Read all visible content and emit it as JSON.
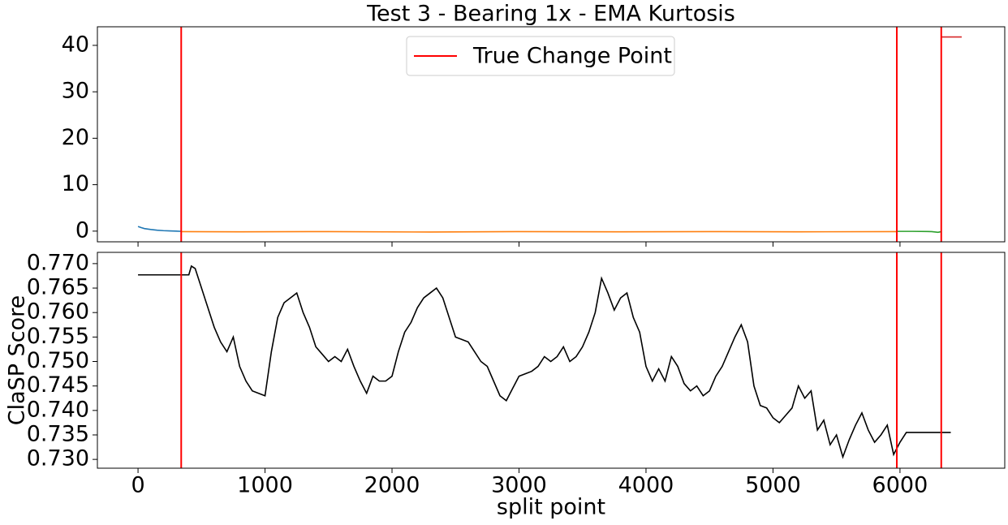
{
  "chart_data": [
    {
      "type": "line",
      "title": "Test 3 - Bearing 1x - EMA Kurtosis",
      "xlim": [
        -320,
        6825
      ],
      "ylim": [
        -2.3,
        44
      ],
      "yticks": [
        0,
        10,
        20,
        30,
        40
      ],
      "series": [
        {
          "color": "#1f77b4",
          "x": [
            0,
            25,
            50,
            100,
            150,
            200,
            250,
            300,
            340
          ],
          "values": [
            1.0,
            0.75,
            0.55,
            0.35,
            0.2,
            0.1,
            0.05,
            0.0,
            -0.05
          ]
        },
        {
          "color": "#ff7f0e",
          "x": [
            340,
            800,
            1500,
            2300,
            3000,
            3800,
            4500,
            5200,
            5975
          ],
          "values": [
            -0.1,
            -0.15,
            -0.1,
            -0.2,
            -0.1,
            -0.15,
            -0.1,
            -0.15,
            -0.1
          ]
        },
        {
          "color": "#2ca02c",
          "x": [
            5975,
            6100,
            6250,
            6300,
            6325
          ],
          "values": [
            -0.05,
            -0.05,
            -0.1,
            -0.25,
            -0.1
          ]
        },
        {
          "color": "#d62728",
          "x": [
            6325,
            6486
          ],
          "values": [
            41.8,
            41.8
          ]
        }
      ],
      "vlines": {
        "name": "True Change Point",
        "color": "#ff0000",
        "x": [
          340,
          5975,
          6325
        ]
      },
      "legend": "upper center"
    },
    {
      "type": "line",
      "xlabel": "split point",
      "ylabel": "ClaSP Score",
      "xlim": [
        -320,
        6825
      ],
      "xticks": [
        0,
        1000,
        2000,
        3000,
        4000,
        5000,
        6000
      ],
      "ylim": [
        0.7282,
        0.7723
      ],
      "yticks": [
        {
          "value": 0.73,
          "label": "0.730"
        },
        0.735,
        {
          "value": 0.74,
          "label": "0.740"
        },
        0.745,
        {
          "value": 0.75,
          "label": "0.750"
        },
        0.755,
        {
          "value": 0.76,
          "label": "0.760"
        },
        0.765,
        {
          "value": 0.77,
          "label": "0.770"
        }
      ],
      "series": [
        {
          "color": "#000000",
          "x": [
            0,
            340,
            400,
            420,
            450,
            500,
            550,
            600,
            650,
            700,
            750,
            800,
            850,
            900,
            950,
            1000,
            1050,
            1100,
            1150,
            1200,
            1250,
            1300,
            1350,
            1400,
            1450,
            1500,
            1550,
            1600,
            1650,
            1700,
            1750,
            1800,
            1850,
            1900,
            1950,
            2000,
            2050,
            2100,
            2150,
            2200,
            2250,
            2300,
            2350,
            2400,
            2450,
            2500,
            2550,
            2600,
            2650,
            2700,
            2750,
            2800,
            2850,
            2900,
            2950,
            3000,
            3050,
            3100,
            3150,
            3200,
            3250,
            3300,
            3350,
            3400,
            3450,
            3500,
            3550,
            3600,
            3650,
            3700,
            3750,
            3800,
            3850,
            3900,
            3950,
            4000,
            4050,
            4100,
            4150,
            4200,
            4250,
            4300,
            4350,
            4400,
            4450,
            4500,
            4550,
            4600,
            4650,
            4700,
            4750,
            4800,
            4850,
            4900,
            4950,
            5000,
            5050,
            5100,
            5150,
            5200,
            5250,
            5300,
            5350,
            5400,
            5450,
            5500,
            5550,
            5600,
            5650,
            5700,
            5750,
            5800,
            5850,
            5900,
            5950,
            6000,
            6050,
            6100,
            6400
          ],
          "values": [
            0.7677,
            0.7677,
            0.7677,
            0.7695,
            0.769,
            0.765,
            0.761,
            0.757,
            0.754,
            0.752,
            0.755,
            0.749,
            0.746,
            0.744,
            0.7435,
            0.743,
            0.752,
            0.759,
            0.762,
            0.763,
            0.764,
            0.76,
            0.757,
            0.753,
            0.7515,
            0.75,
            0.751,
            0.75,
            0.7525,
            0.749,
            0.746,
            0.7435,
            0.747,
            0.746,
            0.746,
            0.747,
            0.752,
            0.756,
            0.758,
            0.761,
            0.763,
            0.764,
            0.765,
            0.763,
            0.759,
            0.755,
            0.7545,
            0.754,
            0.752,
            0.75,
            0.749,
            0.746,
            0.743,
            0.742,
            0.7445,
            0.747,
            0.7475,
            0.748,
            0.749,
            0.751,
            0.75,
            0.751,
            0.753,
            0.75,
            0.751,
            0.753,
            0.756,
            0.76,
            0.767,
            0.764,
            0.7605,
            0.763,
            0.764,
            0.759,
            0.756,
            0.749,
            0.746,
            0.7485,
            0.746,
            0.751,
            0.749,
            0.7455,
            0.744,
            0.745,
            0.743,
            0.744,
            0.747,
            0.749,
            0.752,
            0.755,
            0.7575,
            0.754,
            0.745,
            0.741,
            0.7405,
            0.7385,
            0.7375,
            0.739,
            0.7405,
            0.745,
            0.7425,
            0.744,
            0.736,
            0.738,
            0.733,
            0.735,
            0.7305,
            0.734,
            0.737,
            0.7395,
            0.736,
            0.7335,
            0.735,
            0.737,
            0.731,
            0.7335,
            0.7355,
            0.7355,
            0.7355
          ]
        }
      ],
      "vlines": {
        "color": "#ff0000",
        "x": [
          340,
          5975,
          6325
        ]
      }
    }
  ]
}
